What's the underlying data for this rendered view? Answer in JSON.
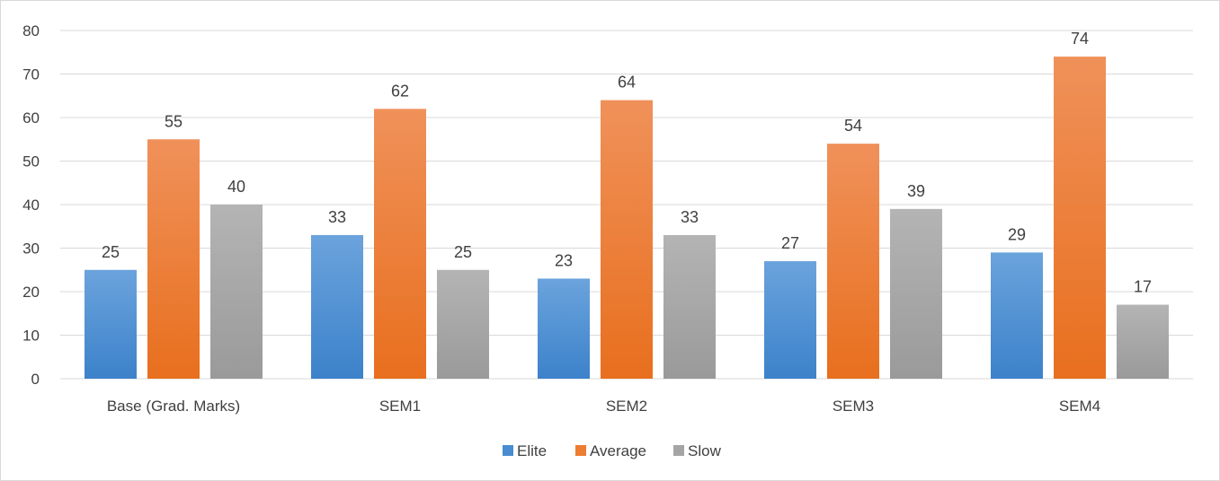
{
  "chart_data": {
    "type": "bar",
    "title": "",
    "xlabel": "",
    "ylabel": "",
    "categories": [
      "Base (Grad. Marks)",
      "SEM1",
      "SEM2",
      "SEM3",
      "SEM4"
    ],
    "series": [
      {
        "name": "Elite",
        "values": [
          25,
          33,
          23,
          27,
          29
        ],
        "color": "#4A8CD0",
        "gradient_top": "#6BA3DD",
        "gradient_bottom": "#3C82CA"
      },
      {
        "name": "Average",
        "values": [
          55,
          62,
          64,
          54,
          74
        ],
        "color": "#ED7D31",
        "gradient_top": "#F0915A",
        "gradient_bottom": "#E86F1E"
      },
      {
        "name": "Slow",
        "values": [
          40,
          25,
          33,
          39,
          17
        ],
        "color": "#A5A5A5",
        "gradient_top": "#B4B4B4",
        "gradient_bottom": "#9A9A9A"
      }
    ],
    "ylim": [
      0,
      80
    ],
    "yticks": [
      "0",
      "10",
      "20",
      "30",
      "40",
      "50",
      "60",
      "70",
      "80"
    ],
    "grid": true,
    "data_labels": true,
    "legend_position": "bottom"
  }
}
